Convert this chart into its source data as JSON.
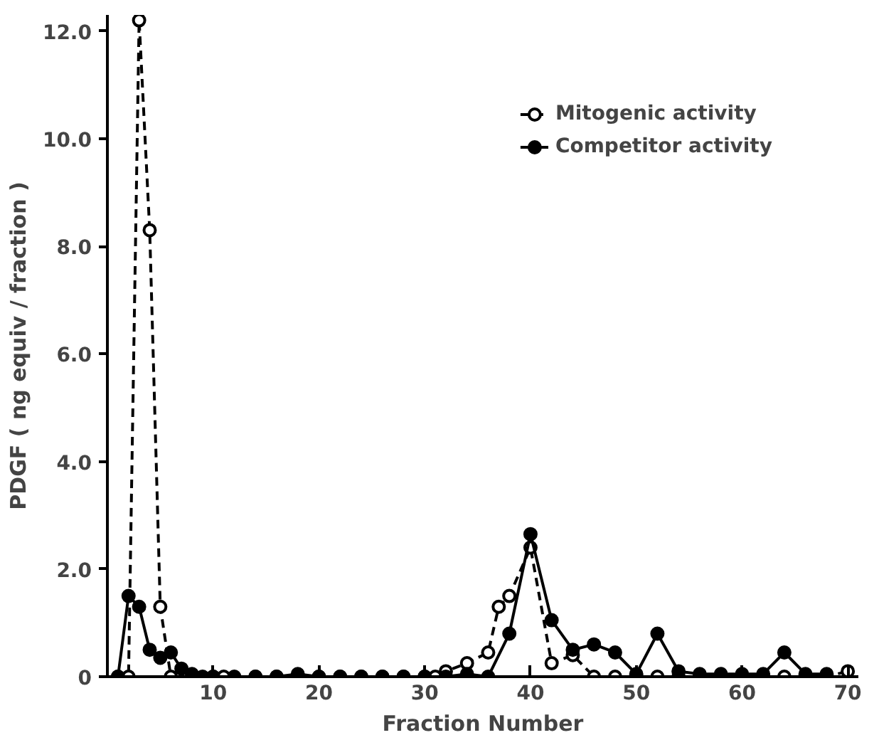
{
  "chart_data": {
    "type": "line",
    "xlabel": "Fraction Number",
    "ylabel": "PDGF ( ng equiv / fraction )",
    "xlim": [
      0,
      71
    ],
    "ylim": [
      0,
      12.3
    ],
    "xticks": [
      10,
      20,
      30,
      40,
      50,
      60,
      70
    ],
    "yticks": [
      {
        "value": 0,
        "label": "0"
      },
      {
        "value": 2,
        "label": "2.0"
      },
      {
        "value": 4,
        "label": "4.0"
      },
      {
        "value": 6,
        "label": "6.0"
      },
      {
        "value": 8,
        "label": "8.0"
      },
      {
        "value": 10,
        "label": "10.0"
      },
      {
        "value": 12,
        "label": "12.0"
      }
    ],
    "grid": false,
    "legend": "top right",
    "series": [
      {
        "name": "Mitogenic activity",
        "color": "#000000",
        "marker": "circle",
        "line_style": "dashed",
        "x": [
          1,
          2,
          3,
          4,
          5,
          6,
          8,
          10,
          11,
          14,
          16,
          18,
          20,
          22,
          24,
          26,
          28,
          30,
          31,
          32,
          34,
          36,
          37,
          38,
          40,
          42,
          44,
          46,
          48,
          50,
          52,
          54,
          56,
          58,
          60,
          62,
          64,
          66,
          68,
          70
        ],
        "values": [
          0,
          0,
          12.2,
          8.3,
          1.3,
          0,
          0,
          0,
          0,
          0,
          0,
          0,
          0,
          0,
          0,
          0,
          0,
          0,
          0,
          0.1,
          0.25,
          0.45,
          1.3,
          1.5,
          2.4,
          0.25,
          0.4,
          0,
          0,
          0,
          0,
          0,
          0,
          0,
          0,
          0,
          0,
          0,
          0,
          0.1
        ]
      },
      {
        "name": "Competitor activity",
        "color": "#000000",
        "marker": "circle",
        "line_style": "solid",
        "x": [
          1,
          2,
          3,
          4,
          5,
          6,
          7,
          8,
          9,
          10,
          12,
          14,
          16,
          18,
          20,
          22,
          24,
          26,
          28,
          30,
          32,
          34,
          36,
          38,
          40,
          42,
          44,
          46,
          48,
          50,
          52,
          54,
          56,
          58,
          60,
          62,
          64,
          66,
          68
        ],
        "values": [
          0,
          1.5,
          1.3,
          0.5,
          0.35,
          0.45,
          0.15,
          0.05,
          0,
          0,
          0,
          0,
          0,
          0.05,
          0,
          0,
          0,
          0,
          0,
          0,
          0,
          0.05,
          0,
          0.8,
          2.65,
          1.05,
          0.5,
          0.6,
          0.45,
          0.05,
          0.8,
          0.1,
          0.05,
          0.05,
          0.05,
          0.05,
          0.45,
          0.05,
          0.05
        ]
      }
    ]
  }
}
